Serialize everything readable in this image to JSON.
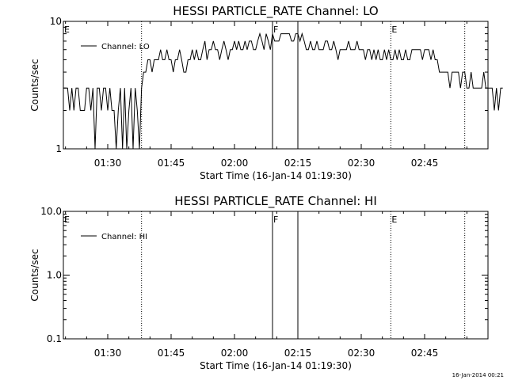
{
  "footer": {
    "timestamp": "16-Jan-2014 00:21"
  },
  "chart_data": [
    {
      "type": "line",
      "title": "HESSI PARTICLE_RATE Channel: LO",
      "xlabel": "Start Time (16-Jan-14 01:19:30)",
      "ylabel": "Counts/sec",
      "yscale": "log",
      "ylim": [
        1,
        10
      ],
      "xlim": [
        "01:19:30",
        "03:00:00"
      ],
      "x_ticks": [
        "01:30",
        "01:45",
        "02:00",
        "02:15",
        "02:30",
        "02:45"
      ],
      "y_ticks": [
        "1",
        "10"
      ],
      "legend": {
        "position": "top-left",
        "entries": [
          "Channel: LO"
        ]
      },
      "markers": [
        {
          "label": "E",
          "time": "01:19:30",
          "style": "none"
        },
        {
          "label": "",
          "time": "01:38:00",
          "style": "dotted"
        },
        {
          "label": "F",
          "time": "02:09:00",
          "style": "solid"
        },
        {
          "label": "",
          "time": "02:15:00",
          "style": "solid"
        },
        {
          "label": "E",
          "time": "02:37:00",
          "style": "dotted"
        },
        {
          "label": "",
          "time": "02:54:30",
          "style": "dotted"
        }
      ],
      "series": [
        {
          "name": "Channel: LO",
          "time_start": "01:19:30",
          "step_seconds": 30,
          "values": [
            3,
            3,
            3,
            2,
            3,
            2,
            3,
            3,
            2,
            2,
            2,
            3,
            3,
            2,
            3,
            1,
            3,
            3,
            2,
            3,
            3,
            2,
            3,
            2,
            2,
            1,
            2,
            3,
            1,
            3,
            1,
            2,
            3,
            1,
            3,
            2,
            1,
            3,
            4,
            4,
            5,
            5,
            4,
            5,
            5,
            5,
            6,
            5,
            5,
            6,
            5,
            5,
            4,
            5,
            5,
            6,
            5,
            4,
            4,
            5,
            5,
            6,
            5,
            6,
            5,
            5,
            6,
            7,
            5,
            6,
            6,
            7,
            6,
            6,
            5,
            6,
            7,
            6,
            5,
            6,
            6,
            7,
            6,
            7,
            6,
            6,
            7,
            6,
            7,
            7,
            6,
            6,
            7,
            8,
            7,
            6,
            8,
            7,
            6,
            8,
            7,
            7,
            7,
            8,
            8,
            8,
            8,
            8,
            7,
            7,
            8,
            8,
            7,
            8,
            7,
            6,
            6,
            7,
            6,
            6,
            7,
            6,
            6,
            6,
            7,
            7,
            6,
            6,
            7,
            6,
            5,
            6,
            6,
            6,
            6,
            7,
            6,
            6,
            6,
            7,
            6,
            6,
            6,
            5,
            6,
            6,
            5,
            6,
            5,
            6,
            5,
            5,
            6,
            5,
            6,
            5,
            5,
            6,
            5,
            6,
            5,
            5,
            6,
            5,
            5,
            6,
            6,
            6,
            6,
            6,
            5,
            6,
            6,
            6,
            5,
            6,
            5,
            5,
            4,
            4,
            4,
            4,
            4,
            3,
            4,
            4,
            4,
            4,
            3,
            4,
            4,
            3,
            3,
            4,
            3,
            3,
            3,
            3,
            3,
            4,
            3,
            3,
            3,
            3,
            2,
            3,
            2,
            3,
            3
          ]
        }
      ]
    },
    {
      "type": "line",
      "title": "HESSI PARTICLE_RATE Channel: HI",
      "xlabel": "Start Time (16-Jan-14 01:19:30)",
      "ylabel": "Counts/sec",
      "yscale": "log",
      "ylim": [
        0.1,
        10
      ],
      "xlim": [
        "01:19:30",
        "03:00:00"
      ],
      "x_ticks": [
        "01:30",
        "01:45",
        "02:00",
        "02:15",
        "02:30",
        "02:45"
      ],
      "y_ticks": [
        "0.1",
        "1.0",
        "10.0"
      ],
      "legend": {
        "position": "top-left",
        "entries": [
          "Channel: HI"
        ]
      },
      "markers": [
        {
          "label": "E",
          "time": "01:19:30",
          "style": "none"
        },
        {
          "label": "",
          "time": "01:38:00",
          "style": "dotted"
        },
        {
          "label": "F",
          "time": "02:09:00",
          "style": "solid"
        },
        {
          "label": "",
          "time": "02:15:00",
          "style": "solid"
        },
        {
          "label": "E",
          "time": "02:37:00",
          "style": "dotted"
        },
        {
          "label": "",
          "time": "02:54:30",
          "style": "dotted"
        }
      ],
      "series": [
        {
          "name": "Channel: HI",
          "values": []
        }
      ]
    }
  ]
}
